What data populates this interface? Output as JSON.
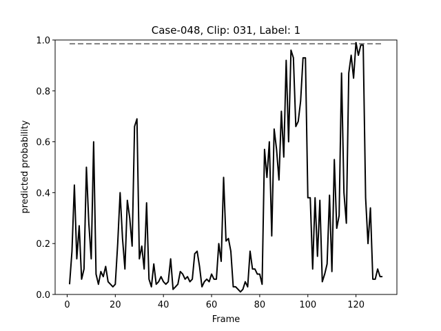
{
  "chart_data": {
    "type": "line",
    "title": "Case-048, Clip: 031, Label: 1",
    "xlabel": "Frame",
    "ylabel": "predicted probability",
    "xlim": [
      -5,
      137
    ],
    "ylim": [
      0.0,
      1.0
    ],
    "xticks": [
      0,
      20,
      40,
      60,
      80,
      100,
      120
    ],
    "yticks": [
      0.0,
      0.2,
      0.4,
      0.6,
      0.8,
      1.0
    ],
    "grid": false,
    "reference_line": {
      "y": 0.985,
      "x_start": 1,
      "x_end": 131,
      "style": "dashed"
    },
    "series": [
      {
        "x": [
          1,
          2,
          3,
          4,
          5,
          6,
          7,
          8,
          9,
          10,
          11,
          12,
          13,
          14,
          15,
          16,
          17,
          18,
          19,
          20,
          21,
          22,
          23,
          24,
          25,
          26,
          27,
          28,
          29,
          30,
          31,
          32,
          33,
          34,
          35,
          36,
          37,
          38,
          39,
          40,
          41,
          42,
          43,
          44,
          45,
          46,
          47,
          48,
          49,
          50,
          51,
          52,
          53,
          54,
          55,
          56,
          57,
          58,
          59,
          60,
          61,
          62,
          63,
          64,
          65,
          66,
          67,
          68,
          69,
          70,
          71,
          72,
          73,
          74,
          75,
          76,
          77,
          78,
          79,
          80,
          81,
          82,
          83,
          84,
          85,
          86,
          87,
          88,
          89,
          90,
          91,
          92,
          93,
          94,
          95,
          96,
          97,
          98,
          99,
          100,
          101,
          102,
          103,
          104,
          105,
          106,
          107,
          108,
          109,
          110,
          111,
          112,
          113,
          114,
          115,
          116,
          117,
          118,
          119,
          120,
          121,
          122,
          123,
          124,
          125,
          126,
          127,
          128,
          129,
          130,
          131
        ],
        "values": [
          0.04,
          0.17,
          0.43,
          0.14,
          0.27,
          0.06,
          0.1,
          0.5,
          0.28,
          0.14,
          0.6,
          0.08,
          0.04,
          0.09,
          0.07,
          0.11,
          0.05,
          0.04,
          0.03,
          0.04,
          0.2,
          0.4,
          0.22,
          0.1,
          0.37,
          0.3,
          0.19,
          0.66,
          0.69,
          0.14,
          0.19,
          0.1,
          0.36,
          0.06,
          0.03,
          0.12,
          0.04,
          0.05,
          0.07,
          0.05,
          0.04,
          0.05,
          0.14,
          0.02,
          0.03,
          0.04,
          0.09,
          0.08,
          0.06,
          0.07,
          0.05,
          0.06,
          0.16,
          0.17,
          0.11,
          0.03,
          0.05,
          0.06,
          0.05,
          0.08,
          0.06,
          0.06,
          0.2,
          0.13,
          0.46,
          0.21,
          0.22,
          0.17,
          0.03,
          0.03,
          0.02,
          0.01,
          0.02,
          0.05,
          0.03,
          0.17,
          0.1,
          0.1,
          0.08,
          0.08,
          0.04,
          0.57,
          0.46,
          0.6,
          0.23,
          0.65,
          0.57,
          0.45,
          0.72,
          0.54,
          0.92,
          0.6,
          0.96,
          0.93,
          0.66,
          0.68,
          0.76,
          0.93,
          0.93,
          0.38,
          0.38,
          0.1,
          0.38,
          0.15,
          0.37,
          0.05,
          0.08,
          0.12,
          0.39,
          0.09,
          0.53,
          0.26,
          0.31,
          0.87,
          0.4,
          0.28,
          0.87,
          0.94,
          0.85,
          0.99,
          0.94,
          0.98,
          0.98,
          0.38,
          0.2,
          0.34,
          0.06,
          0.06,
          0.1,
          0.07,
          0.07
        ]
      }
    ]
  }
}
